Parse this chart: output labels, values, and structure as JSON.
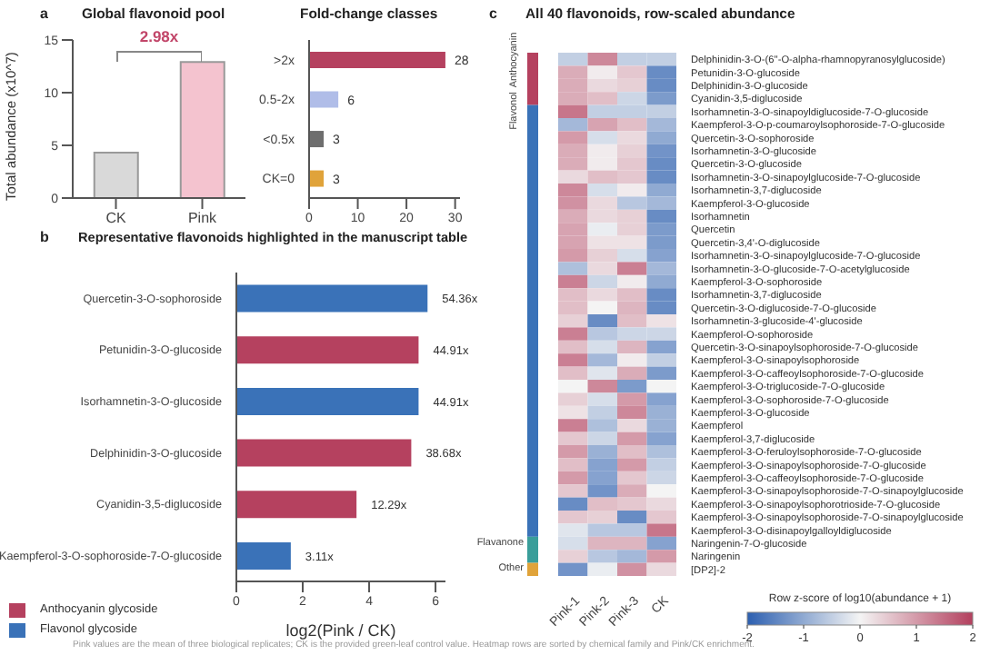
{
  "chart_data": [
    {
      "type": "bar",
      "title": "Global flavonoid pool",
      "annotations": [
        "a",
        "2.98x",
        "Pink values are the mean of three biological replicates; CK is the provided green-leaf control value. Heatmap rows are sorted by chemical family and Pink/CK enrichment."
      ],
      "categories": [
        "CK",
        "Pink"
      ],
      "values": [
        4.3,
        12.9
      ],
      "colors": [
        "#d9d9d9",
        "#f4c3cf"
      ],
      "ylabel": "Total abundance (x10^7)",
      "ylim": [
        0,
        15
      ],
      "yticks": [
        0,
        5,
        10,
        15
      ]
    },
    {
      "type": "bar",
      "orientation": "horizontal",
      "title": "Fold-change classes",
      "categories": [
        ">2x",
        "0.5-2x",
        "<0.5x",
        "CK=0"
      ],
      "values": [
        28,
        6,
        3,
        3
      ],
      "colors": [
        "#b5415f",
        "#b0bde8",
        "#6e6e6e",
        "#e0a33a"
      ],
      "xlim": [
        0,
        31
      ],
      "xticks": [
        0,
        10,
        20,
        30
      ],
      "data_labels": true
    },
    {
      "type": "bar",
      "orientation": "horizontal",
      "title": "Representative flavonoids highlighted in the manuscript table",
      "annotations": [
        "b",
        {
          "text": "54.36x",
          "x": 5.76,
          "y": "Quercetin-3-O-sophoroside"
        },
        {
          "text": "44.91x",
          "x": 5.49,
          "y": "Petunidin-3-O-glucoside"
        },
        {
          "text": "44.91x",
          "x": 5.49,
          "y": "Isorhamnetin-3-O-glucoside"
        },
        {
          "text": "38.68x",
          "x": 5.27,
          "y": "Delphinidin-3-O-glucoside"
        },
        {
          "text": "12.29x",
          "x": 3.62,
          "y": "Cyanidin-3,5-diglucoside"
        },
        {
          "text": "3.11x",
          "x": 1.64,
          "y": "Kaempferol-3-O-sophoroside-7-O-glucoside"
        }
      ],
      "categories": [
        "Quercetin-3-O-sophoroside",
        "Petunidin-3-O-glucoside",
        "Isorhamnetin-3-O-glucoside",
        "Delphinidin-3-O-glucoside",
        "Cyanidin-3,5-diglucoside",
        "Kaempferol-3-O-sophoroside-7-O-glucoside"
      ],
      "xlabel": "log2(Pink / CK)",
      "xlim": [
        0,
        6.3
      ],
      "xticks": [
        0,
        2,
        4,
        6
      ],
      "legend": "bottom left",
      "series": [
        {
          "name": "Anthocyanin glycoside",
          "color": "#b5415f",
          "values": [
            null,
            5.49,
            null,
            5.27,
            3.62,
            null
          ]
        },
        {
          "name": "Flavonol glycoside",
          "color": "#3a72b8",
          "values": [
            5.76,
            null,
            5.49,
            null,
            null,
            1.64
          ]
        }
      ]
    },
    {
      "type": "heatmap",
      "title": "All 40 flavonoids, row-scaled abundance",
      "annotations": [
        "c"
      ],
      "y2_categories": [
        "Anthocyanin",
        null,
        null,
        null,
        "Flavonol",
        null,
        null,
        null,
        null,
        null,
        null,
        null,
        null,
        null,
        null,
        null,
        null,
        null,
        null,
        null,
        null,
        null,
        null,
        null,
        null,
        null,
        null,
        null,
        null,
        null,
        null,
        null,
        null,
        null,
        null,
        null,
        null,
        "Flavanone",
        null,
        "Other"
      ],
      "categories": [
        "Pink-1",
        "Pink-2",
        "Pink-3",
        "CK"
      ],
      "y_categories": [
        "Delphinidin-3-O-(6''-O-alpha-rhamnopyranosylglucoside)",
        "Petunidin-3-O-glucoside",
        "Delphinidin-3-O-glucoside",
        "Cyanidin-3,5-diglucoside",
        "Isorhamnetin-3-O-sinapoyldiglucoside-7-O-glucoside",
        "Kaempferol-3-O-p-coumaroylsophoroside-7-O-glucoside",
        "Quercetin-3-O-sophoroside",
        "Isorhamnetin-3-O-glucoside",
        "Quercetin-3-O-glucoside",
        "Isorhamnetin-3-O-sinapoylglucoside-7-O-glucoside",
        "Isorhamnetin-3,7-diglucoside",
        "Kaempferol-3-O-glucoside",
        "Isorhamnetin",
        "Quercetin",
        "Quercetin-3,4'-O-diglucoside",
        "Isorhamnetin-3-O-sinapoylglucoside-7-O-glucoside",
        "Isorhamnetin-3-O-glucoside-7-O-acetylglucoside",
        "Kaempferol-3-O-sophoroside",
        "Isorhamnetin-3,7-diglucoside",
        "Quercetin-3-O-diglucoside-7-O-glucoside",
        "Isorhamnetin-3-glucoside-4'-glucoside",
        "Kaempferol-O-sophoroside",
        "Quercetin-3-O-sinapoylsophoroside-7-O-glucoside",
        "Kaempferol-3-O-sinapoylsophoroside",
        "Kaempferol-3-O-caffeoylsophoroside-7-O-glucoside",
        "Kaempferol-3-O-triglucoside-7-O-glucoside",
        "Kaempferol-3-O-sophoroside-7-O-glucoside",
        "Kaempferol-3-O-glucoside",
        "Kaempferol",
        "Kaempferol-3,7-diglucoside",
        "Kaempferol-3-O-feruloylsophoroside-7-O-glucoside",
        "Kaempferol-3-O-sinapoylsophoroside-7-O-glucoside",
        "Kaempferol-3-O-caffeoylsophoroside-7-O-glucoside",
        "Kaempferol-3-O-sinapoylsophoroside-7-O-sinapoylglucoside",
        "Kaempferol-3-O-sinapoylsophorotrioside-7-O-glucoside",
        "Kaempferol-3-O-sinapoylsophoroside-7-O-sinapoylglucoside",
        "Kaempferol-3-O-disinapoylgalloyldiglucoside",
        "Naringenin-7-O-glucoside",
        "Naringenin",
        "[DP2]-2"
      ],
      "cells": [
        [
          -0.5,
          1.2,
          -0.5,
          -0.5
        ],
        [
          0.8,
          0.1,
          0.5,
          -1.4
        ],
        [
          0.8,
          0.3,
          0.4,
          -1.4
        ],
        [
          0.8,
          0.6,
          -0.4,
          -1.2
        ],
        [
          1.4,
          -0.5,
          -0.5,
          -0.5
        ],
        [
          -0.8,
          0.9,
          0.6,
          -0.8
        ],
        [
          1.0,
          -0.3,
          0.3,
          -1.0
        ],
        [
          0.8,
          0.1,
          0.4,
          -1.3
        ],
        [
          0.8,
          0.1,
          0.5,
          -1.4
        ],
        [
          0.3,
          0.6,
          0.5,
          -1.4
        ],
        [
          1.2,
          -0.3,
          0.1,
          -1.0
        ],
        [
          1.1,
          0.3,
          -0.6,
          -0.8
        ],
        [
          0.8,
          0.3,
          0.4,
          -1.4
        ],
        [
          0.9,
          -0.1,
          0.4,
          -1.2
        ],
        [
          0.9,
          0.2,
          0.2,
          -1.2
        ],
        [
          1.0,
          0.4,
          -0.3,
          -1.1
        ],
        [
          -0.7,
          0.3,
          1.3,
          -0.8
        ],
        [
          1.3,
          -0.4,
          0.1,
          -1.0
        ],
        [
          0.6,
          0.3,
          0.6,
          -1.4
        ],
        [
          0.6,
          0.0,
          0.7,
          -1.4
        ],
        [
          0.4,
          -1.4,
          0.6,
          0.2
        ],
        [
          1.3,
          -0.6,
          -0.4,
          -0.4
        ],
        [
          0.6,
          -0.3,
          0.7,
          -1.1
        ],
        [
          1.3,
          -0.8,
          0.1,
          -0.5
        ],
        [
          0.6,
          -0.2,
          0.8,
          -1.2
        ],
        [
          0.0,
          1.2,
          -1.2,
          0.0
        ],
        [
          0.4,
          -0.3,
          1.0,
          -1.1
        ],
        [
          0.2,
          -0.5,
          1.2,
          -0.9
        ],
        [
          1.3,
          -0.7,
          0.3,
          -0.9
        ],
        [
          0.5,
          -0.4,
          1.0,
          -1.1
        ],
        [
          1.0,
          -0.9,
          0.6,
          -0.7
        ],
        [
          0.6,
          -1.1,
          1.0,
          -0.5
        ],
        [
          1.0,
          -1.1,
          0.5,
          -0.4
        ],
        [
          0.5,
          -1.3,
          0.8,
          0.0
        ],
        [
          -1.4,
          0.6,
          0.5,
          0.3
        ],
        [
          0.5,
          0.4,
          -1.4,
          0.5
        ],
        [
          -0.2,
          -0.6,
          -0.6,
          1.4
        ],
        [
          -0.3,
          0.7,
          0.7,
          -1.1
        ],
        [
          0.4,
          -0.6,
          -0.8,
          1.0
        ],
        [
          -1.3,
          -0.1,
          1.1,
          0.3
        ]
      ],
      "clabel": "Row z-score of log10(abundance + 1)",
      "clim": [
        -2,
        2
      ],
      "cticks": [
        -2,
        -1,
        0,
        1,
        2
      ]
    }
  ]
}
